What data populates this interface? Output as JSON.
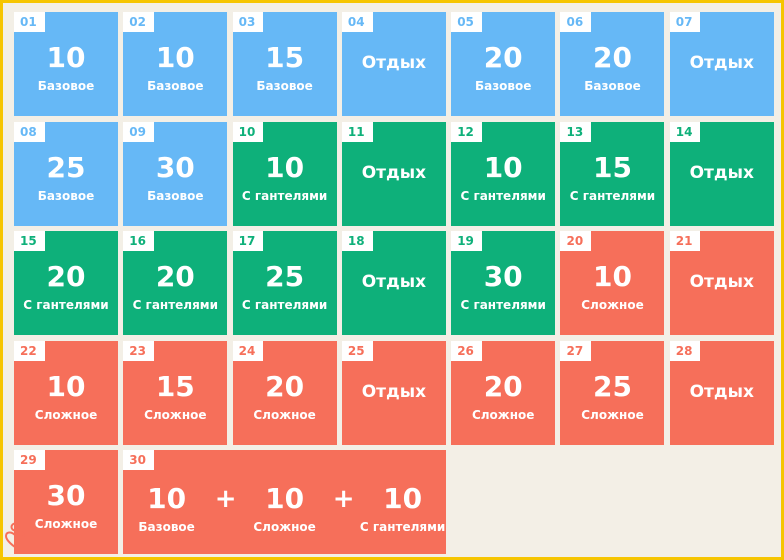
{
  "colors": {
    "border": "#f6c500",
    "base": "#66b8f6",
    "dumbbells": "#0eb07a",
    "hard": "#f66f5a",
    "background": "#f3efe6"
  },
  "days": [
    {
      "day": "01",
      "reps": "10",
      "label": "Базовое",
      "color": "blue"
    },
    {
      "day": "02",
      "reps": "10",
      "label": "Базовое",
      "color": "blue"
    },
    {
      "day": "03",
      "reps": "15",
      "label": "Базовое",
      "color": "blue"
    },
    {
      "day": "04",
      "rest": "Отдых",
      "color": "blue"
    },
    {
      "day": "05",
      "reps": "20",
      "label": "Базовое",
      "color": "blue"
    },
    {
      "day": "06",
      "reps": "20",
      "label": "Базовое",
      "color": "blue"
    },
    {
      "day": "07",
      "rest": "Отдых",
      "color": "blue"
    },
    {
      "day": "08",
      "reps": "25",
      "label": "Базовое",
      "color": "blue"
    },
    {
      "day": "09",
      "reps": "30",
      "label": "Базовое",
      "color": "blue"
    },
    {
      "day": "10",
      "reps": "10",
      "label": "С гантелями",
      "color": "green"
    },
    {
      "day": "11",
      "rest": "Отдых",
      "color": "green"
    },
    {
      "day": "12",
      "reps": "10",
      "label": "С гантелями",
      "color": "green"
    },
    {
      "day": "13",
      "reps": "15",
      "label": "С гантелями",
      "color": "green"
    },
    {
      "day": "14",
      "rest": "Отдых",
      "color": "green"
    },
    {
      "day": "15",
      "reps": "20",
      "label": "С гантелями",
      "color": "green"
    },
    {
      "day": "16",
      "reps": "20",
      "label": "С гантелями",
      "color": "green"
    },
    {
      "day": "17",
      "reps": "25",
      "label": "С гантелями",
      "color": "green"
    },
    {
      "day": "18",
      "rest": "Отдых",
      "color": "green"
    },
    {
      "day": "19",
      "reps": "30",
      "label": "С гантелями",
      "color": "green"
    },
    {
      "day": "20",
      "reps": "10",
      "label": "Сложное",
      "color": "red"
    },
    {
      "day": "21",
      "rest": "Отдых",
      "color": "red"
    },
    {
      "day": "22",
      "reps": "10",
      "label": "Сложное",
      "color": "red"
    },
    {
      "day": "23",
      "reps": "15",
      "label": "Сложное",
      "color": "red"
    },
    {
      "day": "24",
      "reps": "20",
      "label": "Сложное",
      "color": "red"
    },
    {
      "day": "25",
      "rest": "Отдых",
      "color": "red"
    },
    {
      "day": "26",
      "reps": "20",
      "label": "Сложное",
      "color": "red"
    },
    {
      "day": "27",
      "reps": "25",
      "label": "Сложное",
      "color": "red"
    },
    {
      "day": "28",
      "rest": "Отдых",
      "color": "red"
    },
    {
      "day": "29",
      "reps": "30",
      "label": "Сложное",
      "color": "red"
    }
  ],
  "final_day": {
    "day": "30",
    "color": "red",
    "plus": "+",
    "parts": [
      {
        "reps": "10",
        "label": "Базовое"
      },
      {
        "reps": "10",
        "label": "Сложное"
      },
      {
        "reps": "10",
        "label": "С гантелями"
      }
    ]
  },
  "logo_icon": "heart-figure-icon"
}
